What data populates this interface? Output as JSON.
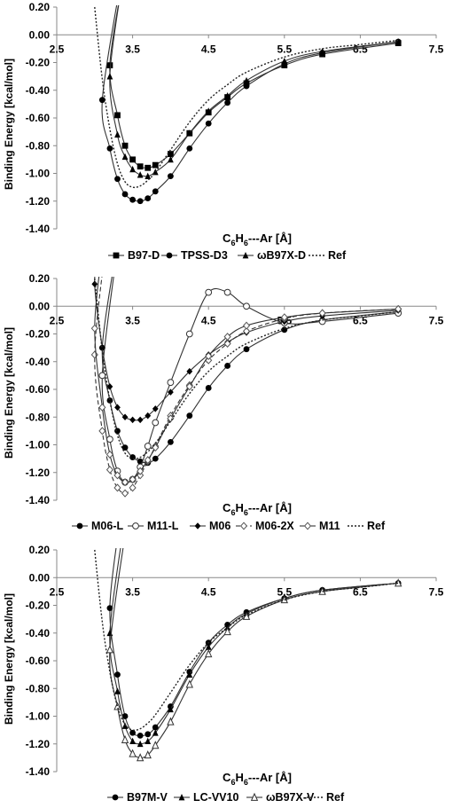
{
  "chart_data": [
    {
      "type": "line",
      "ylabel": "Binding Energy [kcal/mol]",
      "xlabel": "C6H6---Ar [Å]",
      "xlabel_parts": {
        "pre": "C",
        "sub1": "6",
        "mid": "H",
        "sub2": "6",
        "post": "---Ar [Å]"
      },
      "xlim": [
        2.5,
        7.5
      ],
      "ylim": [
        -1.4,
        0.2
      ],
      "x_ticks": [
        "2.5",
        "3.5",
        "4.5",
        "5.5",
        "6.5",
        "7.5"
      ],
      "y_ticks": [
        "0.20",
        "0.00",
        "-0.20",
        "-0.40",
        "-0.60",
        "-0.80",
        "-1.00",
        "-1.20",
        "-1.40"
      ],
      "legend_position": "bottom",
      "series": [
        {
          "name": "B97-D",
          "marker": "square",
          "dash": "solid",
          "x": [
            3.2,
            3.3,
            3.4,
            3.5,
            3.6,
            3.7,
            3.8,
            4.0,
            4.25,
            4.5,
            4.75,
            5.0,
            5.5,
            6.0,
            7.0
          ],
          "y": [
            -0.22,
            -0.58,
            -0.8,
            -0.9,
            -0.95,
            -0.96,
            -0.94,
            -0.86,
            -0.71,
            -0.56,
            -0.45,
            -0.35,
            -0.22,
            -0.14,
            -0.06
          ]
        },
        {
          "name": "TPSS-D3",
          "marker": "circle",
          "dash": "solid",
          "x": [
            3.1,
            3.2,
            3.3,
            3.4,
            3.5,
            3.6,
            3.7,
            3.8,
            4.0,
            4.25,
            4.5,
            4.75,
            5.0,
            5.5,
            6.0,
            7.0
          ],
          "y": [
            -0.47,
            -0.82,
            -1.04,
            -1.15,
            -1.19,
            -1.2,
            -1.18,
            -1.13,
            -1.02,
            -0.82,
            -0.64,
            -0.49,
            -0.37,
            -0.21,
            -0.13,
            -0.05
          ]
        },
        {
          "name": "ωB97X-D",
          "marker": "triangle",
          "dash": "solid",
          "x": [
            3.2,
            3.3,
            3.4,
            3.5,
            3.6,
            3.7,
            3.8,
            4.0,
            4.25,
            4.5,
            4.75,
            5.0,
            5.5,
            6.0,
            7.0
          ],
          "y": [
            -0.3,
            -0.72,
            -0.88,
            -0.97,
            -1.01,
            -1.02,
            -0.99,
            -0.9,
            -0.71,
            -0.55,
            -0.44,
            -0.33,
            -0.19,
            -0.12,
            -0.05
          ]
        },
        {
          "name": "Ref",
          "marker": "none",
          "dash": "dot",
          "x": [
            3.0,
            3.1,
            3.2,
            3.3,
            3.4,
            3.5,
            3.6,
            3.7,
            3.8,
            4.0,
            4.25,
            4.5,
            4.75,
            5.0,
            5.5,
            6.0,
            6.5,
            7.0
          ],
          "y": [
            0.2,
            -0.32,
            -0.68,
            -0.93,
            -1.06,
            -1.1,
            -1.09,
            -1.05,
            -0.99,
            -0.83,
            -0.63,
            -0.47,
            -0.36,
            -0.27,
            -0.16,
            -0.1,
            -0.07,
            -0.04
          ]
        }
      ]
    },
    {
      "type": "line",
      "ylabel": "Binding Energy [kcal/mol]",
      "xlabel": "C6H6---Ar [Å]",
      "xlabel_parts": {
        "pre": "C",
        "sub1": "6",
        "mid": "H",
        "sub2": "6",
        "post": "---Ar [Å]"
      },
      "xlim": [
        2.5,
        7.5
      ],
      "ylim": [
        -1.4,
        0.2
      ],
      "x_ticks": [
        "2.5",
        "3.5",
        "4.5",
        "5.5",
        "6.5",
        "7.5"
      ],
      "y_ticks": [
        "0.20",
        "0.00",
        "-0.20",
        "-0.40",
        "-0.60",
        "-0.80",
        "-1.00",
        "-1.20",
        "-1.40"
      ],
      "legend_position": "bottom",
      "series": [
        {
          "name": "M06-L",
          "marker": "circle",
          "dash": "solid",
          "x": [
            3.1,
            3.2,
            3.3,
            3.4,
            3.5,
            3.6,
            3.7,
            3.8,
            4.0,
            4.25,
            4.5,
            4.75,
            5.0,
            5.5,
            6.0,
            7.0
          ],
          "y": [
            -0.3,
            -0.68,
            -0.9,
            -1.02,
            -1.09,
            -1.12,
            -1.13,
            -1.1,
            -0.98,
            -0.79,
            -0.59,
            -0.43,
            -0.31,
            -0.17,
            -0.1,
            -0.04
          ]
        },
        {
          "name": "M11-L",
          "marker": "open-circle",
          "dash": "solid",
          "x": [
            3.1,
            3.2,
            3.3,
            3.4,
            3.5,
            3.6,
            3.7,
            3.8,
            4.0,
            4.25,
            4.5,
            4.75,
            5.0,
            5.5,
            6.0,
            7.0
          ],
          "y": [
            -0.5,
            -0.96,
            -1.19,
            -1.27,
            -1.25,
            -1.16,
            -1.01,
            -0.84,
            -0.55,
            -0.2,
            0.1,
            0.1,
            0.0,
            -0.12,
            -0.11,
            -0.05
          ]
        },
        {
          "name": "M06",
          "marker": "diamond",
          "dash": "solid",
          "x": [
            3.0,
            3.1,
            3.2,
            3.3,
            3.4,
            3.5,
            3.6,
            3.7,
            3.8,
            4.0,
            4.25,
            4.5,
            4.75,
            5.0,
            5.5,
            6.0,
            7.0
          ],
          "y": [
            0.16,
            -0.3,
            -0.58,
            -0.73,
            -0.8,
            -0.82,
            -0.82,
            -0.79,
            -0.74,
            -0.62,
            -0.47,
            -0.35,
            -0.26,
            -0.19,
            -0.11,
            -0.07,
            -0.03
          ]
        },
        {
          "name": "M06-2X",
          "marker": "open-diamond",
          "dash": "dash",
          "x": [
            3.0,
            3.1,
            3.2,
            3.3,
            3.4,
            3.5,
            3.6,
            3.7,
            3.8,
            4.0,
            4.25,
            4.5,
            4.75,
            5.0,
            5.5,
            6.0,
            7.0
          ],
          "y": [
            -0.35,
            -0.9,
            -1.18,
            -1.31,
            -1.35,
            -1.31,
            -1.22,
            -1.12,
            -1.01,
            -0.79,
            -0.57,
            -0.39,
            -0.27,
            -0.18,
            -0.09,
            -0.05,
            -0.02
          ]
        },
        {
          "name": "M11",
          "marker": "open-diamond",
          "dash": "solid",
          "x": [
            3.0,
            3.1,
            3.2,
            3.3,
            3.4,
            3.5,
            3.6,
            3.7,
            3.8,
            4.0,
            4.25,
            4.5,
            4.75,
            5.0,
            5.5,
            6.0,
            7.0
          ],
          "y": [
            -0.16,
            -0.73,
            -1.07,
            -1.22,
            -1.27,
            -1.25,
            -1.19,
            -1.11,
            -1.02,
            -0.81,
            -0.58,
            -0.36,
            -0.22,
            -0.14,
            -0.08,
            -0.05,
            -0.02
          ]
        },
        {
          "name": "Ref",
          "marker": "none",
          "dash": "dot",
          "x": [
            3.0,
            3.1,
            3.2,
            3.3,
            3.4,
            3.5,
            3.6,
            3.7,
            3.8,
            4.0,
            4.25,
            4.5,
            4.75,
            5.0,
            5.5,
            6.0,
            6.5,
            7.0
          ],
          "y": [
            0.2,
            -0.32,
            -0.68,
            -0.93,
            -1.06,
            -1.1,
            -1.09,
            -1.05,
            -0.99,
            -0.83,
            -0.63,
            -0.47,
            -0.36,
            -0.27,
            -0.16,
            -0.1,
            -0.07,
            -0.04
          ]
        }
      ]
    },
    {
      "type": "line",
      "ylabel": "Binding Energy [kcal/mol]",
      "xlabel": "C6H6---Ar [Å]",
      "xlabel_parts": {
        "pre": "C",
        "sub1": "6",
        "mid": "H",
        "sub2": "6",
        "post": "---Ar [Å]"
      },
      "xlim": [
        2.5,
        7.5
      ],
      "ylim": [
        -1.4,
        0.2
      ],
      "x_ticks": [
        "2.5",
        "3.5",
        "4.5",
        "5.5",
        "6.5",
        "7.5"
      ],
      "y_ticks": [
        "0.20",
        "0.00",
        "-0.20",
        "-0.40",
        "-0.60",
        "-0.80",
        "-1.00",
        "-1.20",
        "-1.40"
      ],
      "legend_position": "bottom",
      "series": [
        {
          "name": "B97M-V",
          "marker": "circle",
          "dash": "solid",
          "x": [
            3.2,
            3.3,
            3.4,
            3.5,
            3.6,
            3.7,
            3.8,
            4.0,
            4.25,
            4.5,
            4.75,
            5.0,
            5.5,
            6.0,
            7.0
          ],
          "y": [
            -0.22,
            -0.7,
            -1.0,
            -1.12,
            -1.14,
            -1.13,
            -1.08,
            -0.93,
            -0.68,
            -0.47,
            -0.34,
            -0.25,
            -0.15,
            -0.09,
            -0.04
          ]
        },
        {
          "name": "LC-VV10",
          "marker": "triangle",
          "dash": "solid",
          "x": [
            3.2,
            3.3,
            3.4,
            3.5,
            3.6,
            3.7,
            3.8,
            4.0,
            4.25,
            4.5,
            4.75,
            5.0,
            5.5,
            6.0,
            7.0
          ],
          "y": [
            -0.4,
            -0.82,
            -1.07,
            -1.18,
            -1.2,
            -1.18,
            -1.12,
            -0.95,
            -0.7,
            -0.5,
            -0.36,
            -0.26,
            -0.15,
            -0.09,
            -0.04
          ]
        },
        {
          "name": "ωB97X-V",
          "marker": "open-triangle",
          "dash": "solid",
          "x": [
            3.2,
            3.3,
            3.4,
            3.5,
            3.6,
            3.7,
            3.8,
            4.0,
            4.25,
            4.5,
            4.75,
            5.0,
            5.5,
            6.0,
            7.0
          ],
          "y": [
            -0.52,
            -0.93,
            -1.17,
            -1.27,
            -1.3,
            -1.28,
            -1.21,
            -1.04,
            -0.77,
            -0.55,
            -0.39,
            -0.28,
            -0.16,
            -0.1,
            -0.04
          ]
        },
        {
          "name": "Ref",
          "marker": "none",
          "dash": "dot",
          "x": [
            3.0,
            3.1,
            3.2,
            3.3,
            3.4,
            3.5,
            3.6,
            3.7,
            3.8,
            4.0,
            4.25,
            4.5,
            4.75,
            5.0,
            5.5,
            6.0,
            6.5,
            7.0
          ],
          "y": [
            0.2,
            -0.32,
            -0.68,
            -0.93,
            -1.06,
            -1.1,
            -1.09,
            -1.05,
            -0.99,
            -0.83,
            -0.63,
            -0.47,
            -0.36,
            -0.27,
            -0.16,
            -0.1,
            -0.07,
            -0.04
          ]
        }
      ]
    }
  ]
}
